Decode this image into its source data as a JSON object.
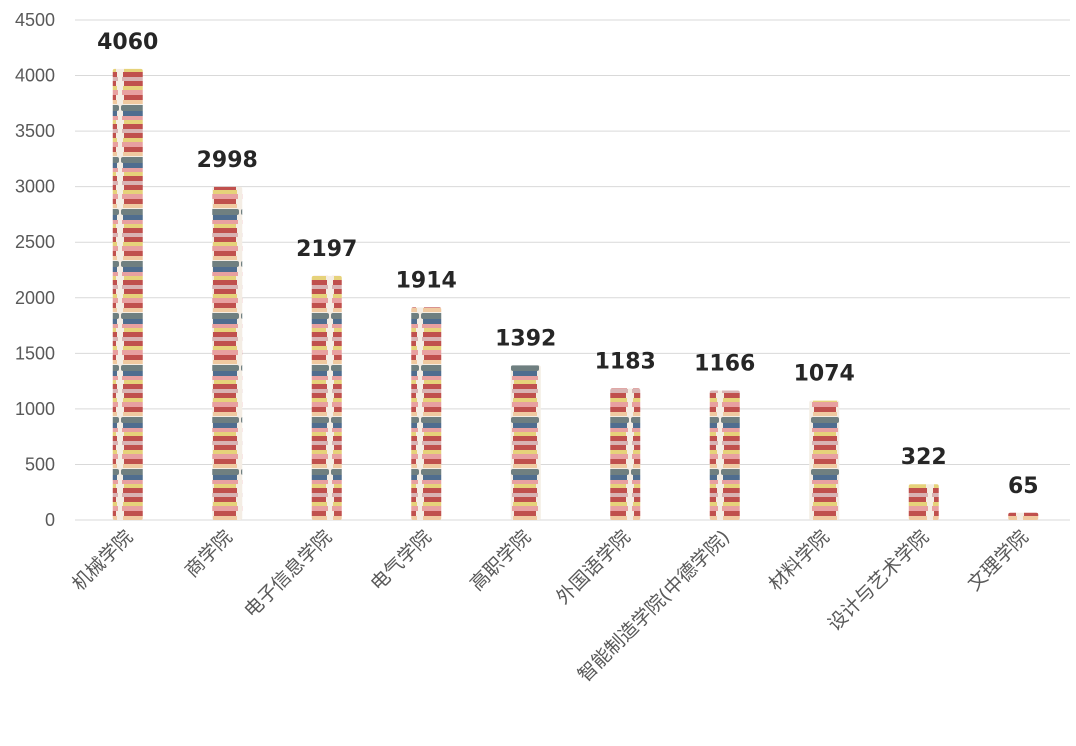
{
  "chart_data": {
    "type": "bar",
    "title": "",
    "xlabel": "",
    "ylabel": "",
    "ylim": [
      0,
      4500
    ],
    "yticks": [
      0,
      500,
      1000,
      1500,
      2000,
      2500,
      3000,
      3500,
      4000,
      4500
    ],
    "grid": true,
    "legend": "none",
    "bar_style": "stacked-books-picture-fill",
    "categories": [
      "机械学院",
      "商学院",
      "电子信息学院",
      "电气学院",
      "高职学院",
      "外国语学院",
      "智能制造学院(中德学院)",
      "材料学院",
      "设计与艺术学院",
      "文理学院"
    ],
    "values": [
      4060,
      2998,
      2197,
      1914,
      1392,
      1183,
      1166,
      1074,
      322,
      65
    ],
    "data_labels": [
      "4060",
      "2998",
      "2197",
      "1914",
      "1392",
      "1183",
      "1166",
      "1074",
      "322",
      "65"
    ],
    "colors": {
      "gridline": "#d9d9d9",
      "axis_text": "#595959",
      "data_label": "#262626",
      "book_red": "#c0504d",
      "book_blue": "#4f6d8f",
      "book_yellow": "#e6d27a",
      "book_pink": "#e8a0a0",
      "book_grey": "#7f8c8d"
    }
  }
}
